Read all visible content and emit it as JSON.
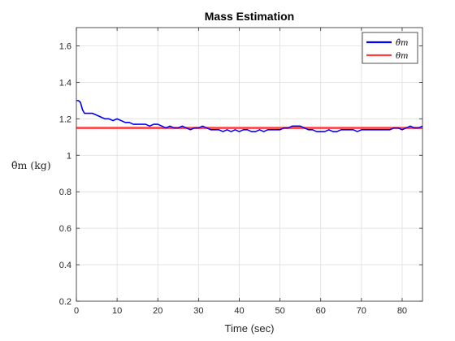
{
  "chart_data": {
    "type": "line",
    "title": "Mass Estimation",
    "xlabel": "Time (sec)",
    "ylabel": "θ̂m (kg)",
    "xlim": [
      0,
      85
    ],
    "ylim": [
      0.2,
      1.7
    ],
    "xticks": [
      0,
      10,
      20,
      30,
      40,
      50,
      60,
      70,
      80
    ],
    "yticks": [
      0.2,
      0.4,
      0.6,
      0.8,
      1,
      1.2,
      1.4,
      1.6
    ],
    "xtick_labels": [
      "0",
      "10",
      "20",
      "30",
      "40",
      "50",
      "60",
      "70",
      "80"
    ],
    "ytick_labels": [
      "0.2",
      "0.4",
      "0.6",
      "0.8",
      "1",
      "1.2",
      "1.4",
      "1.6"
    ],
    "grid": true,
    "legend_position": "top-right",
    "series": [
      {
        "name": "θ̂m",
        "color": "#0000ff",
        "x": [
          0,
          0.5,
          1,
          1.5,
          2,
          3,
          4,
          5,
          6,
          7,
          8,
          9,
          10,
          11,
          12,
          13,
          14,
          15,
          16,
          17,
          18,
          19,
          20,
          21,
          22,
          23,
          24,
          25,
          26,
          27,
          28,
          29,
          30,
          31,
          32,
          33,
          34,
          35,
          36,
          37,
          38,
          39,
          40,
          41,
          42,
          43,
          44,
          45,
          46,
          47,
          48,
          49,
          50,
          51,
          52,
          53,
          54,
          55,
          56,
          57,
          58,
          59,
          60,
          61,
          62,
          63,
          64,
          65,
          66,
          67,
          68,
          69,
          70,
          71,
          72,
          73,
          74,
          75,
          76,
          77,
          78,
          79,
          80,
          81,
          82,
          83,
          84,
          85
        ],
        "values": [
          1.3,
          1.3,
          1.29,
          1.25,
          1.23,
          1.23,
          1.23,
          1.22,
          1.21,
          1.2,
          1.2,
          1.19,
          1.2,
          1.19,
          1.18,
          1.18,
          1.17,
          1.17,
          1.17,
          1.17,
          1.16,
          1.17,
          1.17,
          1.16,
          1.15,
          1.16,
          1.15,
          1.15,
          1.16,
          1.15,
          1.14,
          1.15,
          1.15,
          1.16,
          1.15,
          1.14,
          1.14,
          1.14,
          1.13,
          1.14,
          1.13,
          1.14,
          1.13,
          1.14,
          1.14,
          1.13,
          1.13,
          1.14,
          1.13,
          1.14,
          1.14,
          1.14,
          1.14,
          1.15,
          1.15,
          1.16,
          1.16,
          1.16,
          1.15,
          1.14,
          1.14,
          1.13,
          1.13,
          1.13,
          1.14,
          1.13,
          1.13,
          1.14,
          1.14,
          1.14,
          1.14,
          1.13,
          1.14,
          1.14,
          1.14,
          1.14,
          1.14,
          1.14,
          1.14,
          1.14,
          1.15,
          1.15,
          1.14,
          1.15,
          1.16,
          1.15,
          1.15,
          1.16
        ]
      },
      {
        "name": "θm",
        "color": "#ff4040",
        "x": [
          0,
          85
        ],
        "values": [
          1.15,
          1.15
        ]
      }
    ]
  }
}
